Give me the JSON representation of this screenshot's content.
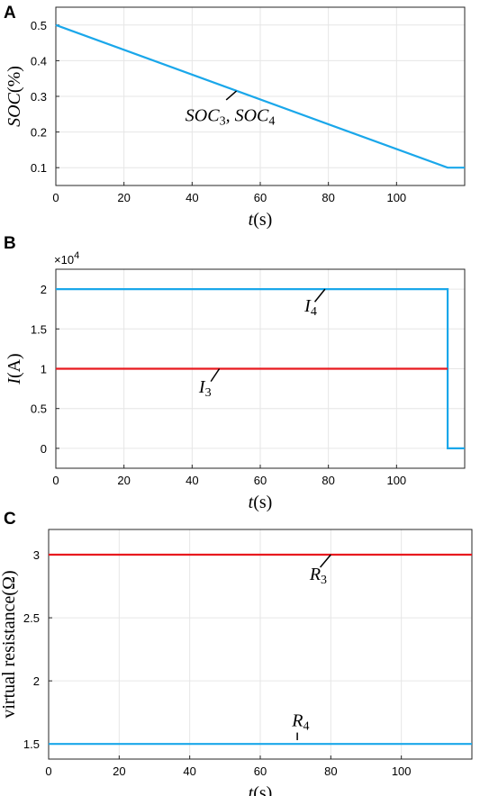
{
  "chart_data": [
    {
      "panel": "A",
      "type": "line",
      "xlabel": "t(s)",
      "ylabel": "SOC(%)",
      "xlim": [
        0,
        120
      ],
      "ylim": [
        0.05,
        0.55
      ],
      "xticks": [
        0,
        20,
        40,
        60,
        80,
        100
      ],
      "yticks": [
        0.1,
        0.2,
        0.3,
        0.4,
        0.5
      ],
      "ytick_labels": [
        "0.1",
        "0.2",
        "0.3",
        "0.4",
        "0.5"
      ],
      "grid": true,
      "series": [
        {
          "color": "#1aa7ea",
          "x": [
            0,
            115,
            120
          ],
          "y": [
            0.5,
            0.1,
            0.1
          ]
        }
      ],
      "annotations": [
        {
          "text": "SOC",
          "sub": "3",
          "text2": ", SOC",
          "sub2": "4",
          "x": 38,
          "y": 0.23,
          "pointer_from": [
            50,
            0.29
          ],
          "pointer_to": [
            53,
            0.315
          ]
        }
      ]
    },
    {
      "panel": "B",
      "type": "line",
      "xlabel": "t(s)",
      "ylabel": "I(A)",
      "scale_note": "×10",
      "scale_note_exp": "4",
      "xlim": [
        0,
        120
      ],
      "ylim": [
        -0.25,
        2.25
      ],
      "xticks": [
        0,
        20,
        40,
        60,
        80,
        100
      ],
      "yticks": [
        0,
        0.5,
        1,
        1.5,
        2
      ],
      "ytick_labels": [
        "0",
        "0.5",
        "1",
        "1.5",
        "2"
      ],
      "grid": true,
      "series": [
        {
          "name": "I4",
          "color": "#1aa7ea",
          "x": [
            0,
            115,
            115,
            120
          ],
          "y": [
            2,
            2,
            0,
            0
          ]
        },
        {
          "name": "I3",
          "color": "#e8191f",
          "x": [
            0,
            115
          ],
          "y": [
            1,
            1
          ]
        }
      ],
      "annotations": [
        {
          "text": "I",
          "sub": "4",
          "x": 73,
          "y": 1.72,
          "pointer_from": [
            76,
            1.84
          ],
          "pointer_to": [
            79,
            2.0
          ]
        },
        {
          "text": "I",
          "sub": "3",
          "x": 42,
          "y": 0.7,
          "pointer_from": [
            45.5,
            0.84
          ],
          "pointer_to": [
            48,
            1.0
          ]
        }
      ]
    },
    {
      "panel": "C",
      "type": "line",
      "xlabel": "t(s)",
      "ylabel": "virtual resistance(Ω)",
      "xlim": [
        0,
        120
      ],
      "ylim": [
        1.38,
        3.2
      ],
      "xticks": [
        0,
        20,
        40,
        60,
        80,
        100
      ],
      "yticks": [
        1.5,
        2,
        2.5,
        3
      ],
      "ytick_labels": [
        "1.5",
        "2",
        "2.5",
        "3"
      ],
      "grid": true,
      "series": [
        {
          "name": "R3",
          "color": "#e8191f",
          "x": [
            0,
            120
          ],
          "y": [
            3,
            3
          ]
        },
        {
          "name": "R4",
          "color": "#1aa7ea",
          "x": [
            0,
            120
          ],
          "y": [
            1.5,
            1.5
          ]
        }
      ],
      "annotations": [
        {
          "text": "R",
          "sub": "3",
          "x": 74,
          "y": 2.8,
          "pointer_from": [
            77,
            2.9
          ],
          "pointer_to": [
            80,
            3.0
          ]
        },
        {
          "text": "R",
          "sub": "4",
          "x": 69,
          "y": 1.64,
          "pointer_from": [
            70.5,
            1.59
          ],
          "pointer_to": [
            70.5,
            1.53
          ]
        }
      ]
    }
  ]
}
